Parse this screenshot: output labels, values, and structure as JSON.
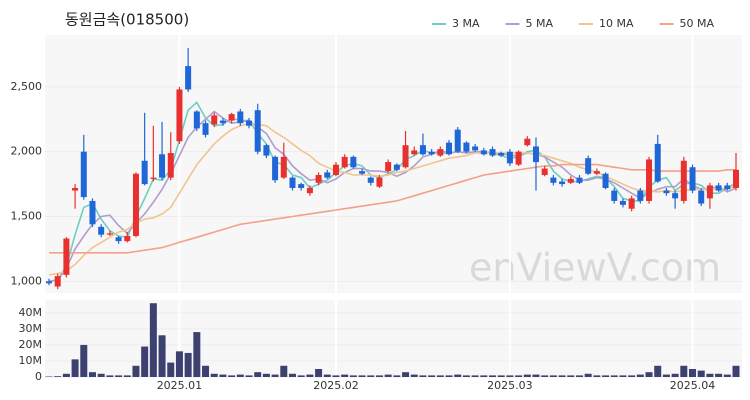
{
  "chart_data": {
    "type": "candlestick",
    "title": "동원금속(018500)",
    "watermark": "enViewV.com",
    "grid": true,
    "up_color": "#e8312e",
    "down_color": "#1f66d6",
    "categories": [
      null,
      null,
      null,
      null,
      null,
      null,
      null,
      null,
      null,
      null,
      null,
      null,
      null,
      null,
      null,
      "2025.01",
      null,
      null,
      null,
      null,
      null,
      null,
      null,
      null,
      null,
      null,
      null,
      null,
      null,
      null,
      null,
      null,
      null,
      "2025.02",
      null,
      null,
      null,
      null,
      null,
      null,
      null,
      null,
      null,
      null,
      null,
      null,
      null,
      null,
      null,
      null,
      null,
      null,
      null,
      "2025.03",
      null,
      null,
      null,
      null,
      null,
      null,
      null,
      null,
      null,
      null,
      null,
      null,
      null,
      null,
      null,
      null,
      null,
      null,
      null,
      null,
      "2025.04",
      null,
      null,
      null,
      null,
      null
    ],
    "open": [
      1000,
      960,
      1050,
      1700,
      2000,
      1620,
      1420,
      1360,
      1340,
      1310,
      1350,
      1930,
      1790,
      1980,
      1800,
      2080,
      2660,
      2310,
      2220,
      2210,
      2240,
      2240,
      2310,
      2240,
      2320,
      2050,
      1960,
      1800,
      1800,
      1750,
      1680,
      1760,
      1840,
      1820,
      1880,
      1960,
      1850,
      1800,
      1730,
      1850,
      1900,
      1880,
      1980,
      2050,
      2000,
      1970,
      2070,
      2170,
      2070,
      2040,
      2010,
      2020,
      1990,
      2000,
      1900,
      2050,
      2040,
      1820,
      1800,
      1770,
      1760,
      1800,
      1950,
      1830,
      1830,
      1700,
      1620,
      1560,
      1700,
      1620,
      2060,
      1700,
      1680,
      1620,
      1880,
      1700,
      1640,
      1740,
      1740,
      1720
    ],
    "high": [
      1020,
      1060,
      1340,
      1750,
      2130,
      1640,
      1440,
      1390,
      1350,
      1380,
      1840,
      2300,
      2200,
      2230,
      2150,
      2500,
      2800,
      2320,
      2240,
      2300,
      2260,
      2300,
      2330,
      2260,
      2370,
      2060,
      1970,
      2070,
      1810,
      1760,
      1740,
      1840,
      1860,
      1920,
      1980,
      1970,
      1870,
      1810,
      1820,
      1940,
      1910,
      2160,
      2040,
      2140,
      2020,
      2040,
      2090,
      2190,
      2080,
      2060,
      2030,
      2040,
      2000,
      2020,
      2010,
      2120,
      2110,
      1890,
      1820,
      1790,
      1810,
      1820,
      1970,
      1870,
      1840,
      1720,
      1640,
      1660,
      1720,
      1960,
      2130,
      1720,
      1700,
      1960,
      1900,
      1720,
      1760,
      1760,
      1760,
      1990
    ],
    "low": [
      970,
      940,
      1030,
      1560,
      1630,
      1420,
      1340,
      1350,
      1290,
      1300,
      1340,
      1740,
      1770,
      1780,
      1780,
      2060,
      2460,
      2160,
      2110,
      2190,
      2200,
      2220,
      2200,
      2180,
      1980,
      1950,
      1760,
      1790,
      1700,
      1700,
      1660,
      1740,
      1790,
      1810,
      1870,
      1870,
      1820,
      1740,
      1720,
      1840,
      1850,
      1870,
      1970,
      1970,
      1970,
      1960,
      1970,
      1990,
      1990,
      2000,
      1970,
      1960,
      1960,
      1890,
      1890,
      2040,
      1700,
      1810,
      1740,
      1730,
      1750,
      1750,
      1820,
      1820,
      1710,
      1600,
      1570,
      1540,
      1600,
      1600,
      1760,
      1660,
      1560,
      1600,
      1680,
      1580,
      1560,
      1690,
      1700,
      1700
    ],
    "close": [
      985,
      1040,
      1330,
      1720,
      1650,
      1440,
      1360,
      1370,
      1310,
      1350,
      1830,
      1750,
      1800,
      1800,
      1990,
      2480,
      2480,
      2180,
      2130,
      2280,
      2220,
      2290,
      2220,
      2200,
      2000,
      1970,
      1780,
      1960,
      1720,
      1720,
      1720,
      1820,
      1800,
      1900,
      1960,
      1880,
      1830,
      1760,
      1800,
      1920,
      1860,
      2050,
      2010,
      1980,
      1980,
      2020,
      1980,
      2000,
      2000,
      2010,
      1980,
      1970,
      1970,
      1910,
      2000,
      2100,
      1920,
      1870,
      1760,
      1750,
      1790,
      1760,
      1830,
      1850,
      1720,
      1620,
      1590,
      1640,
      1620,
      1940,
      1770,
      1680,
      1640,
      1930,
      1700,
      1600,
      1740,
      1700,
      1710,
      1860
    ],
    "series": [
      {
        "name": "3 MA",
        "color": "#6dcfc0",
        "values": [
          1000,
          1010,
          1120,
          1360,
          1570,
          1600,
          1480,
          1390,
          1350,
          1340,
          1500,
          1640,
          1790,
          1780,
          1860,
          2090,
          2320,
          2380,
          2260,
          2200,
          2210,
          2260,
          2240,
          2240,
          2140,
          2060,
          1920,
          1900,
          1820,
          1800,
          1720,
          1750,
          1780,
          1840,
          1890,
          1910,
          1890,
          1820,
          1800,
          1830,
          1860,
          1940,
          1970,
          2010,
          1990,
          1990,
          1990,
          2000,
          1990,
          2000,
          2000,
          1990,
          1970,
          1950,
          1960,
          2000,
          2010,
          1960,
          1850,
          1790,
          1770,
          1770,
          1790,
          1810,
          1800,
          1730,
          1640,
          1620,
          1620,
          1730,
          1780,
          1800,
          1700,
          1750,
          1760,
          1740,
          1680,
          1680,
          1720,
          1760
        ]
      },
      {
        "name": "5 MA",
        "color": "#b19cd0",
        "values": [
          1000,
          1010,
          1100,
          1250,
          1350,
          1440,
          1500,
          1510,
          1430,
          1370,
          1450,
          1520,
          1610,
          1710,
          1830,
          1970,
          2110,
          2190,
          2250,
          2310,
          2260,
          2220,
          2230,
          2240,
          2190,
          2140,
          2030,
          1980,
          1890,
          1830,
          1780,
          1790,
          1760,
          1790,
          1840,
          1870,
          1870,
          1850,
          1850,
          1840,
          1810,
          1840,
          1890,
          1960,
          1980,
          2010,
          1990,
          2000,
          1990,
          2000,
          1990,
          1990,
          1990,
          1970,
          1970,
          1990,
          1980,
          1960,
          1920,
          1880,
          1820,
          1780,
          1780,
          1800,
          1790,
          1760,
          1720,
          1680,
          1640,
          1680,
          1710,
          1730,
          1730,
          1790,
          1740,
          1710,
          1720,
          1730,
          1690,
          1720
        ]
      },
      {
        "name": "10 MA",
        "color": "#f2c48f",
        "values": [
          1050,
          1060,
          1080,
          1130,
          1200,
          1260,
          1300,
          1340,
          1380,
          1400,
          1450,
          1480,
          1490,
          1520,
          1570,
          1680,
          1790,
          1900,
          1980,
          2060,
          2120,
          2170,
          2200,
          2220,
          2210,
          2200,
          2150,
          2110,
          2060,
          2010,
          1970,
          1910,
          1880,
          1850,
          1840,
          1820,
          1820,
          1820,
          1810,
          1820,
          1840,
          1850,
          1870,
          1890,
          1910,
          1930,
          1950,
          1960,
          1970,
          1990,
          1990,
          1990,
          1990,
          1990,
          1990,
          1990,
          1980,
          1970,
          1950,
          1930,
          1910,
          1880,
          1860,
          1840,
          1810,
          1780,
          1750,
          1720,
          1700,
          1700,
          1690,
          1700,
          1690,
          1700,
          1710,
          1710,
          1710,
          1710,
          1720,
          1730
        ]
      },
      {
        "name": "50 MA",
        "color": "#f4a08a",
        "values": [
          1220,
          1220,
          1220,
          1220,
          1220,
          1220,
          1220,
          1220,
          1220,
          1220,
          1230,
          1240,
          1250,
          1260,
          1280,
          1300,
          1320,
          1340,
          1360,
          1380,
          1400,
          1420,
          1440,
          1450,
          1460,
          1470,
          1480,
          1490,
          1500,
          1510,
          1520,
          1530,
          1540,
          1550,
          1560,
          1570,
          1580,
          1590,
          1600,
          1610,
          1620,
          1640,
          1660,
          1680,
          1700,
          1720,
          1740,
          1760,
          1780,
          1800,
          1820,
          1830,
          1840,
          1850,
          1860,
          1870,
          1880,
          1890,
          1890,
          1900,
          1900,
          1900,
          1900,
          1900,
          1890,
          1880,
          1870,
          1860,
          1860,
          1860,
          1850,
          1850,
          1850,
          1850,
          1850,
          1850,
          1850,
          1850,
          1860,
          1860
        ]
      }
    ],
    "ylim": [
      910,
      2900
    ],
    "yticks": [
      {
        "value": 1000,
        "label": "1,000"
      },
      {
        "value": 1500,
        "label": "1,500"
      },
      {
        "value": 2000,
        "label": "2,000"
      },
      {
        "value": 2500,
        "label": "2,500"
      }
    ],
    "volume": {
      "color": "#3d4170",
      "values": [
        300000,
        500000,
        2000000,
        11000000,
        20000000,
        3000000,
        2000000,
        1000000,
        1000000,
        1000000,
        7000000,
        19000000,
        46000000,
        26000000,
        9000000,
        16000000,
        15000000,
        28000000,
        7000000,
        2000000,
        1500000,
        1000000,
        1500000,
        1000000,
        3000000,
        2000000,
        1500000,
        7000000,
        2000000,
        1000000,
        1500000,
        5000000,
        1500000,
        1000000,
        1500000,
        1000000,
        1000000,
        1000000,
        1000000,
        1500000,
        1000000,
        3000000,
        1500000,
        1000000,
        1000000,
        1000000,
        1000000,
        1500000,
        1000000,
        1000000,
        1000000,
        1000000,
        1000000,
        1000000,
        1000000,
        1500000,
        1500000,
        1000000,
        1000000,
        1000000,
        1000000,
        1000000,
        2000000,
        1000000,
        1000000,
        1000000,
        1000000,
        1000000,
        1500000,
        3000000,
        7000000,
        1500000,
        2000000,
        7000000,
        5000000,
        4000000,
        2000000,
        2000000,
        1500000,
        7000000
      ],
      "ylim": [
        0,
        48000000
      ],
      "yticks": [
        0,
        {
          "value": 10000000,
          "label": "10M"
        },
        {
          "value": 20000000,
          "label": "20M"
        },
        {
          "value": 30000000,
          "label": "30M"
        },
        {
          "value": 40000000,
          "label": "40M"
        }
      ]
    }
  }
}
